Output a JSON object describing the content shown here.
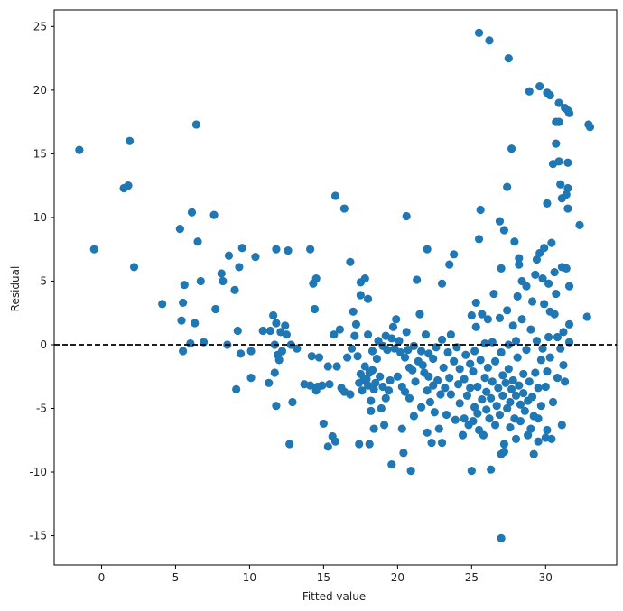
{
  "chart_data": {
    "type": "scatter",
    "xlabel": "Fitted value",
    "ylabel": "Residual",
    "xlim": [
      -3.2,
      34.8
    ],
    "ylim": [
      -17.3,
      26.3
    ],
    "xticks": [
      0,
      5,
      10,
      15,
      20,
      25,
      30
    ],
    "yticks": [
      -15,
      -10,
      -5,
      0,
      5,
      10,
      15,
      20,
      25
    ],
    "xtick_labels": [
      "0",
      "5",
      "10",
      "15",
      "20",
      "25",
      "30"
    ],
    "ytick_labels": [
      "-15",
      "-10",
      "-5",
      "0",
      "5",
      "10",
      "15",
      "20",
      "25"
    ],
    "grid": false,
    "reference_line": {
      "y": 0,
      "style": "dashed",
      "color": "#000000"
    },
    "point_color": "#1f77b4",
    "points": [
      [
        -1.5,
        15.3
      ],
      [
        -0.5,
        7.5
      ],
      [
        1.5,
        12.3
      ],
      [
        1.8,
        12.5
      ],
      [
        1.9,
        16.0
      ],
      [
        2.2,
        6.1
      ],
      [
        4.1,
        3.2
      ],
      [
        5.3,
        9.1
      ],
      [
        5.4,
        1.9
      ],
      [
        5.5,
        3.3
      ],
      [
        5.6,
        4.7
      ],
      [
        5.5,
        -0.5
      ],
      [
        6.0,
        0.1
      ],
      [
        6.1,
        10.4
      ],
      [
        6.3,
        1.7
      ],
      [
        6.4,
        17.3
      ],
      [
        6.5,
        8.1
      ],
      [
        6.7,
        5.0
      ],
      [
        6.9,
        0.2
      ],
      [
        7.6,
        10.2
      ],
      [
        7.7,
        2.8
      ],
      [
        8.1,
        5.6
      ],
      [
        8.2,
        5.0
      ],
      [
        8.5,
        0.0
      ],
      [
        8.6,
        7.0
      ],
      [
        9.0,
        4.3
      ],
      [
        9.1,
        -3.5
      ],
      [
        9.2,
        1.1
      ],
      [
        9.3,
        6.1
      ],
      [
        9.4,
        -0.7
      ],
      [
        9.5,
        7.6
      ],
      [
        10.1,
        -0.5
      ],
      [
        10.1,
        -2.6
      ],
      [
        10.4,
        6.9
      ],
      [
        10.9,
        1.1
      ],
      [
        11.3,
        -3.0
      ],
      [
        11.4,
        1.1
      ],
      [
        11.6,
        2.3
      ],
      [
        11.7,
        0.0
      ],
      [
        11.8,
        1.7
      ],
      [
        11.9,
        -0.8
      ],
      [
        12.0,
        -1.2
      ],
      [
        12.1,
        1.0
      ],
      [
        12.2,
        -0.5
      ],
      [
        12.4,
        1.5
      ],
      [
        12.5,
        0.8
      ],
      [
        12.6,
        7.4
      ],
      [
        12.8,
        0.0
      ],
      [
        12.9,
        -4.5
      ],
      [
        13.2,
        -0.3
      ],
      [
        11.7,
        -2.2
      ],
      [
        11.8,
        -4.8
      ],
      [
        11.8,
        7.5
      ],
      [
        12.7,
        -7.8
      ],
      [
        13.7,
        -3.1
      ],
      [
        14.1,
        -3.2
      ],
      [
        14.2,
        -0.9
      ],
      [
        14.3,
        4.8
      ],
      [
        14.5,
        5.2
      ],
      [
        14.1,
        7.5
      ],
      [
        14.4,
        2.8
      ],
      [
        14.5,
        -3.6
      ],
      [
        14.6,
        -3.3
      ],
      [
        14.7,
        -1.0
      ],
      [
        14.9,
        -3.2
      ],
      [
        15.0,
        -6.2
      ],
      [
        15.3,
        -1.7
      ],
      [
        15.3,
        -8.0
      ],
      [
        15.4,
        -3.1
      ],
      [
        15.6,
        -7.2
      ],
      [
        15.7,
        0.8
      ],
      [
        15.8,
        -7.6
      ],
      [
        15.9,
        -1.7
      ],
      [
        15.8,
        11.7
      ],
      [
        16.1,
        1.2
      ],
      [
        16.2,
        -3.4
      ],
      [
        16.4,
        10.7
      ],
      [
        16.4,
        -3.7
      ],
      [
        16.6,
        -1.0
      ],
      [
        16.8,
        6.5
      ],
      [
        16.8,
        -3.9
      ],
      [
        16.9,
        -0.3
      ],
      [
        17.0,
        2.6
      ],
      [
        17.1,
        0.7
      ],
      [
        17.2,
        1.6
      ],
      [
        17.3,
        -0.9
      ],
      [
        17.4,
        -3.0
      ],
      [
        17.4,
        -7.8
      ],
      [
        17.5,
        4.9
      ],
      [
        17.5,
        3.9
      ],
      [
        17.5,
        -2.3
      ],
      [
        17.6,
        -3.6
      ],
      [
        17.7,
        -2.8
      ],
      [
        17.8,
        -1.7
      ],
      [
        17.8,
        5.2
      ],
      [
        17.9,
        -2.7
      ],
      [
        18.0,
        3.6
      ],
      [
        18.0,
        -3.2
      ],
      [
        18.0,
        0.8
      ],
      [
        18.1,
        -2.2
      ],
      [
        18.1,
        -7.8
      ],
      [
        18.2,
        -4.4
      ],
      [
        18.2,
        -5.2
      ],
      [
        18.3,
        -0.5
      ],
      [
        18.3,
        -2.0
      ],
      [
        18.4,
        -6.6
      ],
      [
        18.4,
        -3.5
      ],
      [
        18.5,
        -3.0
      ],
      [
        18.6,
        -1.1
      ],
      [
        18.7,
        0.3
      ],
      [
        18.8,
        -2.5
      ],
      [
        18.9,
        -5.0
      ],
      [
        19.0,
        -0.1
      ],
      [
        19.0,
        -3.3
      ],
      [
        19.1,
        -6.3
      ],
      [
        19.2,
        -4.2
      ],
      [
        19.2,
        0.7
      ],
      [
        19.3,
        -0.4
      ],
      [
        19.4,
        -3.6
      ],
      [
        19.5,
        -2.8
      ],
      [
        19.6,
        0.5
      ],
      [
        19.6,
        -9.4
      ],
      [
        19.7,
        1.4
      ],
      [
        19.8,
        -0.3
      ],
      [
        19.9,
        2.0
      ],
      [
        20.0,
        -2.5
      ],
      [
        20.1,
        0.3
      ],
      [
        20.2,
        -0.6
      ],
      [
        20.3,
        -3.3
      ],
      [
        20.3,
        -6.6
      ],
      [
        20.4,
        -8.5
      ],
      [
        20.5,
        -1.0
      ],
      [
        20.5,
        -3.7
      ],
      [
        20.6,
        10.1
      ],
      [
        20.6,
        1.0
      ],
      [
        20.7,
        -0.4
      ],
      [
        20.8,
        -1.8
      ],
      [
        20.8,
        -4.2
      ],
      [
        20.9,
        -9.9
      ],
      [
        21.0,
        -2.0
      ],
      [
        21.1,
        -0.1
      ],
      [
        21.1,
        -5.6
      ],
      [
        21.2,
        -2.9
      ],
      [
        21.3,
        5.1
      ],
      [
        21.4,
        -1.3
      ],
      [
        21.5,
        2.4
      ],
      [
        21.6,
        -0.5
      ],
      [
        21.6,
        -4.9
      ],
      [
        21.7,
        -1.6
      ],
      [
        21.8,
        -2.2
      ],
      [
        21.9,
        0.8
      ],
      [
        22.0,
        -3.6
      ],
      [
        22.0,
        -6.9
      ],
      [
        22.0,
        7.5
      ],
      [
        22.1,
        -2.5
      ],
      [
        22.1,
        -0.7
      ],
      [
        22.2,
        -4.5
      ],
      [
        22.3,
        -7.7
      ],
      [
        22.4,
        -1.1
      ],
      [
        22.4,
        -3.2
      ],
      [
        22.5,
        -5.3
      ],
      [
        22.6,
        -0.2
      ],
      [
        22.7,
        -2.8
      ],
      [
        22.8,
        -6.6
      ],
      [
        22.9,
        -3.9
      ],
      [
        23.0,
        4.8
      ],
      [
        23.0,
        0.4
      ],
      [
        23.0,
        -7.7
      ],
      [
        23.1,
        -1.8
      ],
      [
        23.2,
        -3.4
      ],
      [
        23.3,
        -5.5
      ],
      [
        23.4,
        -0.6
      ],
      [
        23.5,
        6.3
      ],
      [
        23.5,
        -2.6
      ],
      [
        23.6,
        0.8
      ],
      [
        23.6,
        -3.9
      ],
      [
        23.8,
        -1.3
      ],
      [
        23.8,
        7.1
      ],
      [
        23.9,
        -5.9
      ],
      [
        24.0,
        -0.2
      ],
      [
        24.1,
        -3.1
      ],
      [
        24.2,
        -4.6
      ],
      [
        24.2,
        -1.9
      ],
      [
        24.4,
        -7.1
      ],
      [
        24.5,
        -2.7
      ],
      [
        24.5,
        -5.8
      ],
      [
        24.6,
        -0.8
      ],
      [
        24.7,
        -4.0
      ],
      [
        24.8,
        -6.3
      ],
      [
        24.9,
        -1.5
      ],
      [
        24.9,
        -3.4
      ],
      [
        25.0,
        -9.9
      ],
      [
        25.0,
        2.3
      ],
      [
        25.1,
        -6.0
      ],
      [
        25.1,
        -2.1
      ],
      [
        25.2,
        -4.9
      ],
      [
        25.2,
        -0.5
      ],
      [
        25.3,
        3.3
      ],
      [
        25.3,
        1.4
      ],
      [
        25.4,
        -3.3
      ],
      [
        25.4,
        -5.4
      ],
      [
        25.5,
        24.5
      ],
      [
        25.5,
        8.3
      ],
      [
        25.5,
        -6.7
      ],
      [
        25.6,
        10.6
      ],
      [
        25.6,
        -1.2
      ],
      [
        25.7,
        2.4
      ],
      [
        25.7,
        -4.3
      ],
      [
        25.8,
        -7.1
      ],
      [
        25.9,
        -2.6
      ],
      [
        25.9,
        0.1
      ],
      [
        26.0,
        -5.1
      ],
      [
        26.0,
        -3.7
      ],
      [
        26.1,
        2.0
      ],
      [
        26.1,
        -1.8
      ],
      [
        26.2,
        23.9
      ],
      [
        26.2,
        -5.8
      ],
      [
        26.3,
        -9.8
      ],
      [
        26.3,
        -4.2
      ],
      [
        26.4,
        0.2
      ],
      [
        26.4,
        -2.9
      ],
      [
        26.5,
        4.0
      ],
      [
        26.6,
        -6.3
      ],
      [
        26.6,
        -1.3
      ],
      [
        26.7,
        -4.8
      ],
      [
        26.8,
        -3.4
      ],
      [
        26.9,
        9.7
      ],
      [
        26.9,
        2.1
      ],
      [
        26.9,
        -5.5
      ],
      [
        27.0,
        6.0
      ],
      [
        27.0,
        -8.6
      ],
      [
        27.0,
        -15.2
      ],
      [
        27.0,
        -0.6
      ],
      [
        27.1,
        -2.4
      ],
      [
        27.1,
        -4.0
      ],
      [
        27.2,
        9.0
      ],
      [
        27.2,
        -7.8
      ],
      [
        27.2,
        -8.4
      ],
      [
        27.3,
        -3.0
      ],
      [
        27.4,
        12.4
      ],
      [
        27.4,
        2.7
      ],
      [
        27.4,
        -5.0
      ],
      [
        27.5,
        22.5
      ],
      [
        27.5,
        -1.9
      ],
      [
        27.5,
        0.0
      ],
      [
        27.6,
        -4.5
      ],
      [
        27.6,
        -6.5
      ],
      [
        27.7,
        15.4
      ],
      [
        27.7,
        -3.5
      ],
      [
        27.8,
        1.5
      ],
      [
        27.8,
        -2.8
      ],
      [
        27.9,
        8.1
      ],
      [
        27.9,
        -5.8
      ],
      [
        28.0,
        -4.0
      ],
      [
        28.0,
        0.3
      ],
      [
        28.0,
        -7.4
      ],
      [
        28.1,
        3.8
      ],
      [
        28.1,
        -1.0
      ],
      [
        28.2,
        6.3
      ],
      [
        28.2,
        6.8
      ],
      [
        28.2,
        -3.2
      ],
      [
        28.3,
        -4.7
      ],
      [
        28.3,
        -6.0
      ],
      [
        28.4,
        5.0
      ],
      [
        28.4,
        2.0
      ],
      [
        28.5,
        -2.3
      ],
      [
        28.5,
        -3.8
      ],
      [
        28.6,
        -5.2
      ],
      [
        28.7,
        4.6
      ],
      [
        28.7,
        -0.4
      ],
      [
        28.8,
        -4.4
      ],
      [
        28.8,
        -7.1
      ],
      [
        28.9,
        19.9
      ],
      [
        28.9,
        -2.9
      ],
      [
        29.0,
        -6.6
      ],
      [
        29.0,
        1.2
      ],
      [
        29.1,
        3.4
      ],
      [
        29.1,
        -4.1
      ],
      [
        29.2,
        -8.6
      ],
      [
        29.2,
        -5.6
      ],
      [
        29.3,
        -2.2
      ],
      [
        29.3,
        5.5
      ],
      [
        29.4,
        6.7
      ],
      [
        29.4,
        0.3
      ],
      [
        29.5,
        -3.4
      ],
      [
        29.5,
        -5.8
      ],
      [
        29.5,
        -7.6
      ],
      [
        29.6,
        20.3
      ],
      [
        29.6,
        7.2
      ],
      [
        29.7,
        -1.2
      ],
      [
        29.7,
        -4.8
      ],
      [
        29.8,
        5.2
      ],
      [
        29.8,
        -0.3
      ],
      [
        29.9,
        7.6
      ],
      [
        29.9,
        3.2
      ],
      [
        30.0,
        -3.3
      ],
      [
        30.0,
        -7.3
      ],
      [
        30.1,
        19.8
      ],
      [
        30.1,
        11.1
      ],
      [
        30.1,
        -2.1
      ],
      [
        30.1,
        -6.7
      ],
      [
        30.2,
        4.8
      ],
      [
        30.2,
        0.6
      ],
      [
        30.3,
        19.6
      ],
      [
        30.3,
        2.6
      ],
      [
        30.3,
        -1.0
      ],
      [
        30.4,
        8.0
      ],
      [
        30.4,
        -7.4
      ],
      [
        30.5,
        14.2
      ],
      [
        30.5,
        -4.5
      ],
      [
        30.6,
        5.7
      ],
      [
        30.6,
        2.4
      ],
      [
        30.7,
        17.5
      ],
      [
        30.7,
        15.8
      ],
      [
        30.7,
        4.0
      ],
      [
        30.8,
        0.6
      ],
      [
        30.8,
        -2.6
      ],
      [
        30.9,
        19.0
      ],
      [
        30.9,
        17.5
      ],
      [
        30.9,
        14.4
      ],
      [
        31.0,
        12.6
      ],
      [
        31.0,
        -0.3
      ],
      [
        31.1,
        11.5
      ],
      [
        31.1,
        6.1
      ],
      [
        31.1,
        -6.3
      ],
      [
        31.2,
        -1.6
      ],
      [
        31.2,
        1.0
      ],
      [
        31.3,
        18.6
      ],
      [
        31.3,
        -2.9
      ],
      [
        31.4,
        11.8
      ],
      [
        31.4,
        6.0
      ],
      [
        31.5,
        18.4
      ],
      [
        31.5,
        14.3
      ],
      [
        31.5,
        12.3
      ],
      [
        31.5,
        10.7
      ],
      [
        31.6,
        18.2
      ],
      [
        31.6,
        4.6
      ],
      [
        31.6,
        1.6
      ],
      [
        31.6,
        0.2
      ],
      [
        32.3,
        9.4
      ],
      [
        32.8,
        2.2
      ],
      [
        32.9,
        17.3
      ],
      [
        33.0,
        17.1
      ]
    ]
  }
}
